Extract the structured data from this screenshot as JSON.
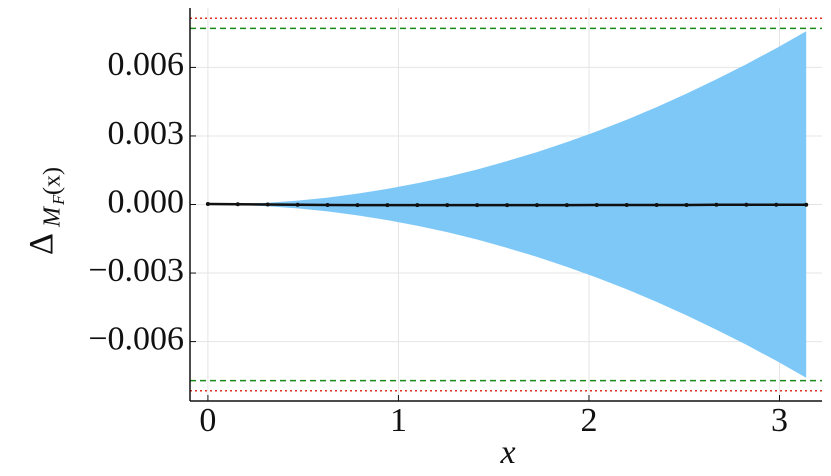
{
  "chart_data": {
    "type": "band-line",
    "xlabel": "x",
    "ylabel": {
      "main": "Δ",
      "sub": "M",
      "subsub": "F",
      "tail": "(x)"
    },
    "x": [
      0,
      0.157,
      0.314,
      0.471,
      0.628,
      0.785,
      0.942,
      1.099,
      1.256,
      1.413,
      1.57,
      1.727,
      1.884,
      2.041,
      2.198,
      2.355,
      2.512,
      2.669,
      2.826,
      2.983,
      3.14
    ],
    "band": {
      "color": "#7ec8f8",
      "upper": [
        0,
        1.9e-05,
        7.58e-05,
        0.000171,
        0.000303,
        0.000474,
        0.000682,
        0.000929,
        0.00121,
        0.00153,
        0.0019,
        0.00229,
        0.00273,
        0.0032,
        0.00371,
        0.00426,
        0.00485,
        0.00548,
        0.00614,
        0.00684,
        0.00758
      ],
      "lower": [
        0,
        -1.9e-05,
        -7.58e-05,
        -0.000171,
        -0.000303,
        -0.000474,
        -0.000682,
        -0.000929,
        -0.00121,
        -0.00153,
        -0.0019,
        -0.00229,
        -0.00273,
        -0.0032,
        -0.00371,
        -0.00426,
        -0.00485,
        -0.00548,
        -0.00614,
        -0.00684,
        -0.00758
      ]
    },
    "series": [
      {
        "color": "#111111",
        "values": [
          2e-05,
          1e-05,
          0,
          -1e-05,
          -2e-05,
          -3e-05,
          -3e-05,
          -3e-05,
          -3e-05,
          -3e-05,
          -3e-05,
          -3e-05,
          -3e-05,
          -2e-05,
          -2e-05,
          -2e-05,
          -2e-05,
          -1e-05,
          -1e-05,
          -1e-05,
          -1e-05
        ]
      }
    ],
    "hlines": [
      {
        "value": 0.00815,
        "color": "#e03020",
        "style": "dotted"
      },
      {
        "value": -0.00815,
        "color": "#e03020",
        "style": "dotted"
      },
      {
        "value": 0.00771,
        "color": "#1a8a1a",
        "style": "dashed"
      },
      {
        "value": -0.00771,
        "color": "#1a8a1a",
        "style": "dashed"
      }
    ],
    "xlim": [
      -0.094,
      3.223
    ],
    "ylim": [
      -0.0086,
      0.0086
    ],
    "xticks": [
      0,
      1,
      2,
      3
    ],
    "yticks": [
      {
        "value": -0.006,
        "label": "−0.006"
      },
      {
        "value": -0.003,
        "label": "−0.003"
      },
      {
        "value": 0,
        "label": "0.000"
      },
      {
        "value": 0.003,
        "label": "0.003"
      },
      {
        "value": 0.006,
        "label": "0.006"
      }
    ],
    "grid": true
  }
}
